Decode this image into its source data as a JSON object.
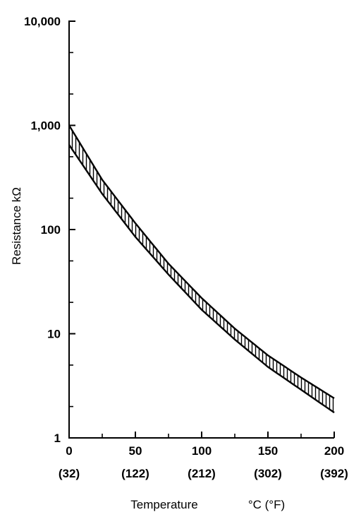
{
  "chart_data": {
    "type": "area",
    "title": "",
    "xlabel": "Temperature",
    "xunit": "°C (°F)",
    "ylabel": "Resistance kΩ",
    "yscale": "log",
    "xlim": [
      0,
      200
    ],
    "ylim": [
      1,
      10000
    ],
    "x_ticks": [
      {
        "value": 0,
        "label": "0",
        "sublabel": "(32)"
      },
      {
        "value": 50,
        "label": "50",
        "sublabel": "(122)"
      },
      {
        "value": 100,
        "label": "100",
        "sublabel": "(212)"
      },
      {
        "value": 150,
        "label": "150",
        "sublabel": "(302)"
      },
      {
        "value": 200,
        "label": "200",
        "sublabel": "(392)"
      }
    ],
    "y_ticks": [
      {
        "value": 1,
        "label": "1"
      },
      {
        "value": 10,
        "label": "10"
      },
      {
        "value": 100,
        "label": "100"
      },
      {
        "value": 1000,
        "label": "1,000"
      },
      {
        "value": 10000,
        "label": "10,000"
      }
    ],
    "x": [
      0,
      25,
      50,
      75,
      100,
      125,
      150,
      175,
      200
    ],
    "series": [
      {
        "values": [
          1000,
          300,
          115,
          47,
          22,
          11.2,
          6.2,
          3.8,
          2.4
        ]
      },
      {
        "values": [
          650,
          220,
          85,
          37,
          17,
          8.8,
          4.8,
          2.9,
          1.75
        ]
      }
    ],
    "band_fill": "vertical-hatch",
    "grid": false
  }
}
